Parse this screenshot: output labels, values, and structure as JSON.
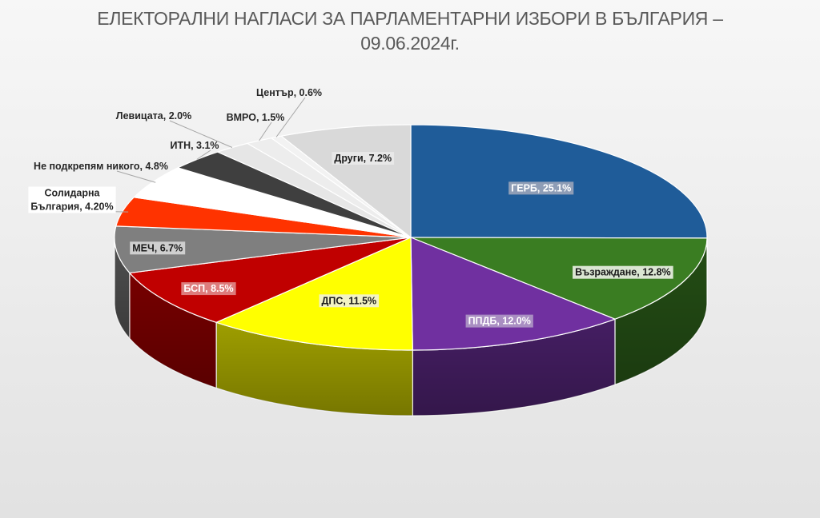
{
  "chart_data": {
    "type": "pie",
    "title": "ЕЛЕКТОРАЛНИ НАГЛАСИ ЗА ПАРЛАМЕНТАРНИ ИЗБОРИ В БЪЛГАРИЯ –",
    "subtitle": "09.06.2024г.",
    "legend": "none",
    "slices": [
      {
        "name": "ГЕРБ",
        "value": 25.1,
        "label": "ГЕРБ, 25.1%",
        "color": "#1f5c99"
      },
      {
        "name": "Възраждане",
        "value": 12.8,
        "label": "Възраждане, 12.8%",
        "color": "#3a7d22"
      },
      {
        "name": "ППДБ",
        "value": 12.0,
        "label": "ППДБ, 12.0%",
        "color": "#7030a0"
      },
      {
        "name": "ДПС",
        "value": 11.5,
        "label": "ДПС, 11.5%",
        "color": "#ffff00"
      },
      {
        "name": "БСП",
        "value": 8.5,
        "label": "БСП, 8.5%",
        "color": "#c00000"
      },
      {
        "name": "МЕЧ",
        "value": 6.7,
        "label": "МЕЧ, 6.7%",
        "color": "#7f7f7f"
      },
      {
        "name": "Солидарна България",
        "value": 4.2,
        "label": "Солидарна\nБългария, 4.20%",
        "color": "#ff3300"
      },
      {
        "name": "Не подкрепям никого",
        "value": 4.8,
        "label": "Не подкрепям никого, 4.8%",
        "color": "#ffffff"
      },
      {
        "name": "ИТН",
        "value": 3.1,
        "label": "ИТН, 3.1%",
        "color": "#3f3f3f"
      },
      {
        "name": "Левицата",
        "value": 2.0,
        "label": "Левицата, 2.0%",
        "color": "#e6e6e6"
      },
      {
        "name": "ВМРО",
        "value": 1.5,
        "label": "ВМРО, 1.5%",
        "color": "#ededed"
      },
      {
        "name": "Център",
        "value": 0.6,
        "label": "Център, 0.6%",
        "color": "#f2f2f2"
      },
      {
        "name": "Други",
        "value": 7.2,
        "label": "Други, 7.2%",
        "color": "#d9d9d9"
      }
    ]
  }
}
